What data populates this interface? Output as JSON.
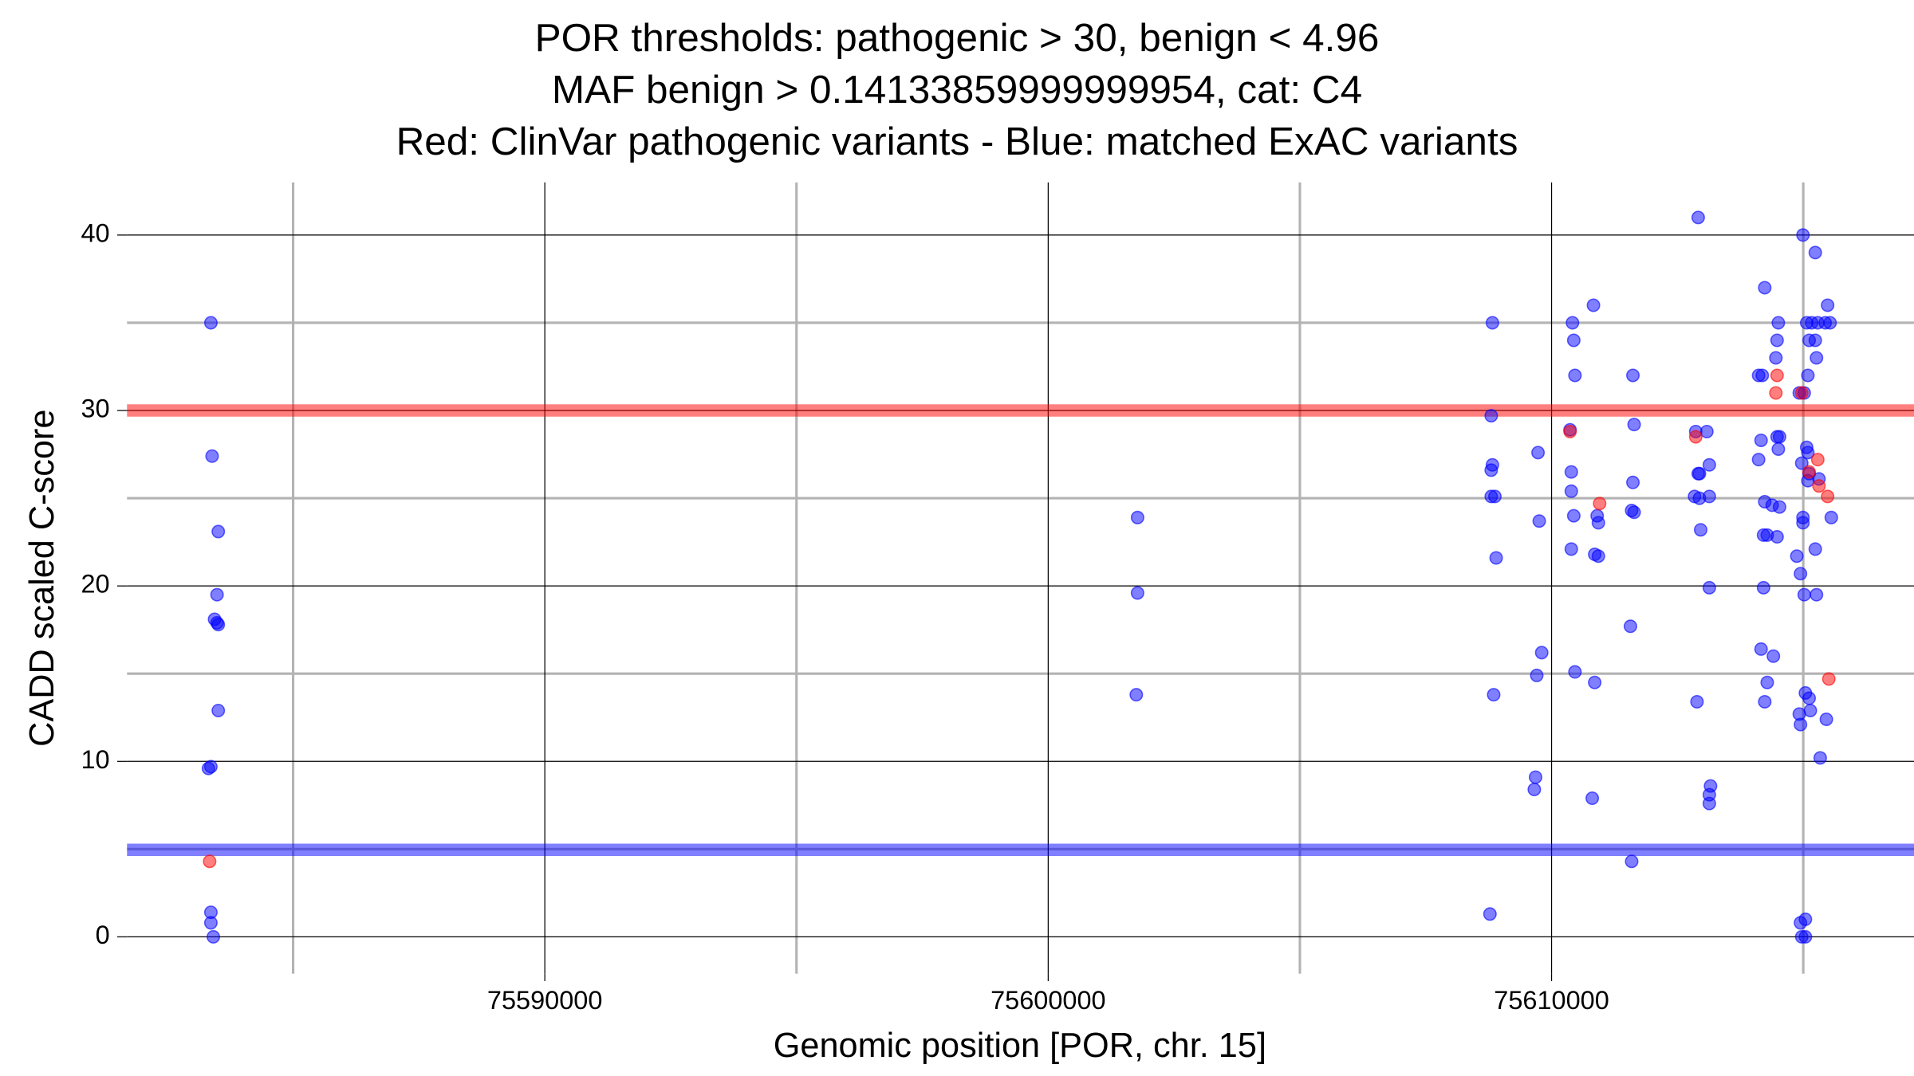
{
  "chart_data": {
    "type": "scatter",
    "title": [
      "POR thresholds: pathogenic > 30, benign < 4.96",
      "MAF benign > 0.14133859999999954, cat: C4",
      "Red: ClinVar pathogenic variants - Blue: matched ExAC variants"
    ],
    "x_label": "Genomic position [POR, chr. 15]",
    "y_label": "CADD scaled C-score",
    "xlim": [
      75581700,
      75617200
    ],
    "ylim": [
      -2.1,
      43
    ],
    "xticks": [
      75590000,
      75600000,
      75610000
    ],
    "yticks": [
      0,
      10,
      20,
      30,
      40
    ],
    "xminor": [
      75585000,
      75595000,
      75605000,
      75615000
    ],
    "yminor": [
      5,
      15,
      25,
      35
    ],
    "grid": true,
    "thresholds": [
      {
        "value": 30,
        "color": "#ff0000"
      },
      {
        "value": 4.96,
        "color": "#0000ff"
      }
    ],
    "series": [
      {
        "color": "#0000ff",
        "x": [
          75583366,
          75583390,
          75583513,
          75583488,
          75583439,
          75583488,
          75583513,
          75583513,
          75583366,
          75583317,
          75583366,
          75583366,
          75583415,
          75601775,
          75601775,
          75601750,
          75608825,
          75608801,
          75608825,
          75608801,
          75608801,
          75608874,
          75608899,
          75608850,
          75608776,
          75609731,
          75609755,
          75609804,
          75609706,
          75609682,
          75609657,
          75610367,
          75610416,
          75610441,
          75610465,
          75610392,
          75610392,
          75610441,
          75610392,
          75610465,
          75610832,
          75610906,
          75610930,
          75610857,
          75610930,
          75610857,
          75610808,
          75611616,
          75611640,
          75611616,
          75611591,
          75611640,
          75611567,
          75611591,
          75612913,
          75612864,
          75613085,
          75613134,
          75612938,
          75612913,
          75612840,
          75612938,
          75613134,
          75612962,
          75613134,
          75612889,
          75613158,
          75613134,
          75613134,
          75614235,
          75614505,
          75614480,
          75614456,
          75614113,
          75614186,
          75614162,
          75614480,
          75614529,
          75614505,
          75614113,
          75614235,
          75614382,
          75614529,
          75614211,
          75614284,
          75614480,
          75614211,
          75614162,
          75614407,
          75614284,
          75614235,
          75614994,
          75615239,
          75615068,
          75615166,
          75615288,
          75615435,
          75615533,
          75615484,
          75615117,
          75615239,
          75615263,
          75615092,
          75614921,
          75615019,
          75615068,
          75615092,
          75614970,
          75615117,
          75615312,
          75615092,
          75614994,
          75614994,
          75615557,
          75615239,
          75614872,
          75614945,
          75615019,
          75615263,
          75615043,
          75615117,
          75614921,
          75615141,
          75615459,
          75614945,
          75615337,
          75614945,
          75615043,
          75614970,
          75615043
        ],
        "values": [
          35,
          27.4,
          23.1,
          19.5,
          18.1,
          17.9,
          17.8,
          12.9,
          9.7,
          9.6,
          1.4,
          0.8,
          0,
          23.9,
          19.6,
          13.8,
          35,
          29.7,
          26.9,
          26.6,
          25.1,
          25.1,
          21.6,
          13.8,
          1.3,
          27.6,
          23.7,
          16.2,
          14.9,
          9.1,
          8.4,
          28.9,
          35,
          34,
          32,
          26.5,
          25.4,
          24,
          22.1,
          15.1,
          36,
          24,
          23.6,
          21.8,
          21.7,
          14.5,
          7.9,
          32,
          29.2,
          25.9,
          24.3,
          24.2,
          17.7,
          4.3,
          41,
          28.8,
          28.8,
          26.9,
          26.4,
          26.4,
          25.1,
          25,
          25.1,
          23.2,
          19.9,
          13.4,
          8.6,
          8.1,
          7.6,
          37,
          35,
          34,
          33,
          32,
          32,
          28.3,
          28.5,
          28.5,
          27.8,
          27.2,
          24.8,
          24.6,
          24.5,
          22.9,
          22.9,
          22.8,
          19.9,
          16.4,
          16,
          14.5,
          13.4,
          40,
          39,
          35,
          35,
          35,
          35,
          35,
          36,
          34,
          34,
          33,
          32,
          31,
          31,
          27.9,
          27.6,
          27,
          26.4,
          26.1,
          26,
          23.9,
          23.6,
          23.9,
          22.1,
          21.7,
          20.7,
          19.5,
          19.5,
          13.9,
          13.6,
          12.7,
          12.9,
          12.4,
          12.1,
          10.2,
          0.8,
          1,
          0,
          0
        ]
      },
      {
        "color": "#ff0000",
        "x": [
          75583341,
          75610367,
          75610955,
          75612864,
          75614480,
          75614456,
          75614970,
          75615288,
          75615117,
          75615312,
          75615484,
          75615508
        ],
        "values": [
          4.3,
          28.8,
          24.7,
          28.5,
          32,
          31,
          31,
          27.2,
          26.5,
          25.7,
          25.1,
          14.7
        ]
      }
    ]
  }
}
